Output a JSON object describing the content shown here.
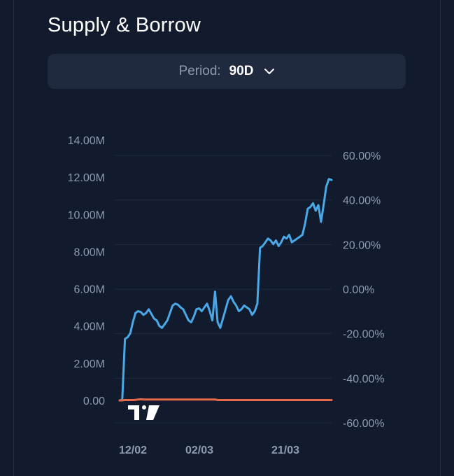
{
  "header": {
    "title": "Supply & Borrow"
  },
  "period": {
    "label": "Period:",
    "value": "90D"
  },
  "icons": {
    "chevron": "chevron-down-icon",
    "watermark": "tradingview-logo"
  },
  "colors": {
    "supply": "#4aa8e6",
    "borrow": "#e8694a",
    "grid": "#1f2a3e"
  },
  "chart_data": {
    "type": "line",
    "left_axis": {
      "ticks": [
        "14.00M",
        "12.00M",
        "10.00M",
        "8.00M",
        "6.00M",
        "4.00M",
        "2.00M",
        "0.00"
      ],
      "range": [
        0,
        14000000
      ]
    },
    "right_axis": {
      "ticks": [
        "60.00%",
        "40.00%",
        "20.00%",
        "0.00%",
        "-20.00%",
        "-40.00%",
        "-60.00%"
      ],
      "range": [
        -60,
        60
      ]
    },
    "x_ticks": [
      "12/02",
      "02/03",
      "21/03"
    ],
    "grid": true,
    "series": [
      {
        "color": "#4aa8e6",
        "axis": "left",
        "values": [
          0.0,
          0.05,
          3.3,
          3.4,
          3.6,
          4.2,
          4.7,
          4.8,
          4.75,
          4.6,
          4.7,
          4.9,
          4.65,
          4.4,
          4.3,
          4.0,
          3.9,
          4.1,
          4.3,
          4.7,
          5.1,
          5.2,
          5.15,
          5.0,
          4.9,
          4.6,
          4.3,
          4.2,
          4.5,
          4.9,
          4.95,
          4.8,
          5.0,
          5.2,
          4.8,
          4.3,
          5.85,
          4.2,
          3.9,
          4.4,
          4.9,
          5.4,
          5.6,
          5.3,
          5.1,
          4.8,
          4.9,
          5.1,
          5.0,
          4.9,
          4.6,
          4.8,
          5.2,
          8.2,
          8.3,
          8.5,
          8.7,
          8.6,
          8.4,
          8.6,
          8.3,
          8.5,
          8.8,
          8.7,
          8.9,
          8.5,
          8.6,
          8.7,
          8.8,
          8.9,
          9.5,
          10.3,
          10.4,
          10.6,
          10.2,
          10.5,
          9.6,
          10.5,
          11.5,
          11.9,
          11.85
        ]
      },
      {
        "color": "#e8694a",
        "axis": "left",
        "values": [
          0.0,
          0.0,
          0.02,
          0.02,
          0.02,
          0.02,
          0.03,
          0.05,
          0.06,
          0.05,
          0.05,
          0.05,
          0.05,
          0.05,
          0.05,
          0.05,
          0.05,
          0.05,
          0.05,
          0.05,
          0.05,
          0.05,
          0.05,
          0.05,
          0.05,
          0.05,
          0.05,
          0.05,
          0.05,
          0.05,
          0.05,
          0.05,
          0.05,
          0.05,
          0.05,
          0.05,
          0.05,
          0.02,
          0.02,
          0.02,
          0.02,
          0.02,
          0.02,
          0.02,
          0.02,
          0.02,
          0.02,
          0.02,
          0.02,
          0.02,
          0.02,
          0.02,
          0.02,
          0.02,
          0.02,
          0.02,
          0.02,
          0.02,
          0.02,
          0.02,
          0.02,
          0.02,
          0.02,
          0.02,
          0.02,
          0.02,
          0.02,
          0.02,
          0.02,
          0.02,
          0.02,
          0.02,
          0.02,
          0.02,
          0.02,
          0.02,
          0.02,
          0.02,
          0.02,
          0.02,
          0.02
        ]
      }
    ],
    "value_unit": "M"
  }
}
